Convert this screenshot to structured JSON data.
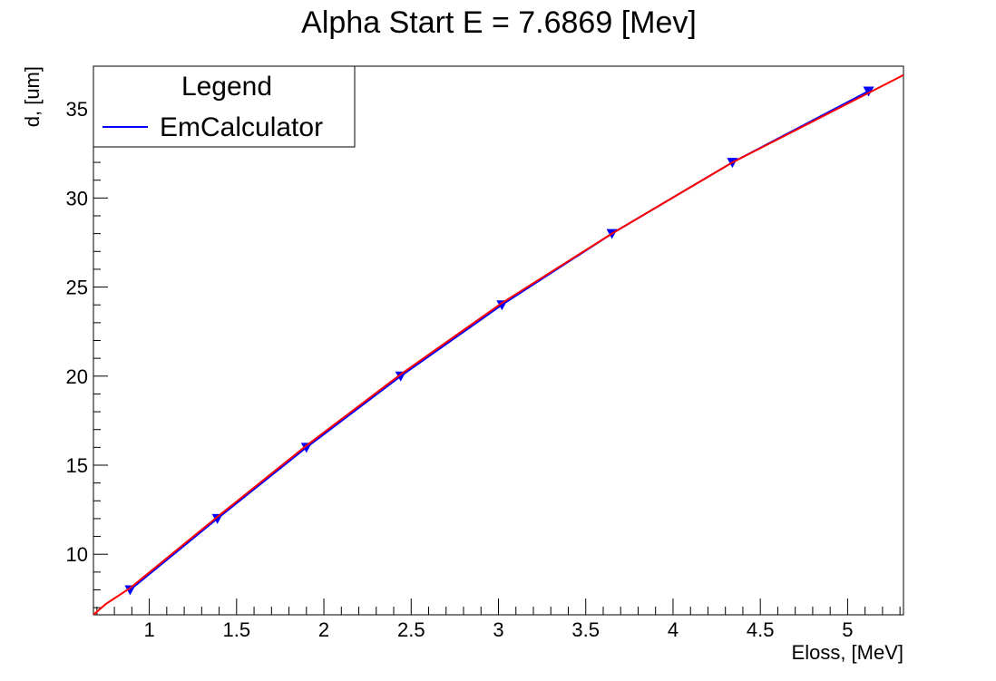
{
  "chart_data": {
    "type": "line",
    "title": "Alpha Start E = 7.6869 [Mev]",
    "xlabel": "Eloss, [MeV]",
    "ylabel": "d, [um]",
    "xlim": [
      0.68,
      5.32
    ],
    "ylim": [
      6.6,
      37.4
    ],
    "x_ticks": [
      1,
      1.5,
      2,
      2.5,
      3,
      3.5,
      4,
      4.5,
      5
    ],
    "x_tick_labels": [
      "1",
      "1.5",
      "2",
      "2.5",
      "3",
      "3.5",
      "4",
      "4.5",
      "5"
    ],
    "y_ticks": [
      10,
      15,
      20,
      25,
      30,
      35
    ],
    "y_tick_labels": [
      "10",
      "15",
      "20",
      "25",
      "30",
      "35"
    ],
    "grid": false,
    "legend": {
      "title": "Legend",
      "placement": "top-left",
      "entries": [
        {
          "label": "EmCalculator",
          "color": "#0000ff"
        }
      ]
    },
    "series": [
      {
        "name": "EmCalculator",
        "kind": "line-markers",
        "color": "#0000ff",
        "marker": "triangle-down",
        "x": [
          0.89,
          1.39,
          1.9,
          2.44,
          3.02,
          3.65,
          4.34,
          5.12
        ],
        "y": [
          8,
          12,
          16,
          20,
          24,
          28,
          32,
          36
        ]
      },
      {
        "kind": "fit",
        "color": "#ff0000",
        "x": [
          0.68,
          0.75,
          0.89,
          1.39,
          1.9,
          2.44,
          3.02,
          3.65,
          4.34,
          5.12,
          5.32
        ],
        "y": [
          6.6,
          7.2,
          8.1,
          12.1,
          16.1,
          20.1,
          24.1,
          28.0,
          32.0,
          35.9,
          36.9
        ]
      }
    ]
  }
}
